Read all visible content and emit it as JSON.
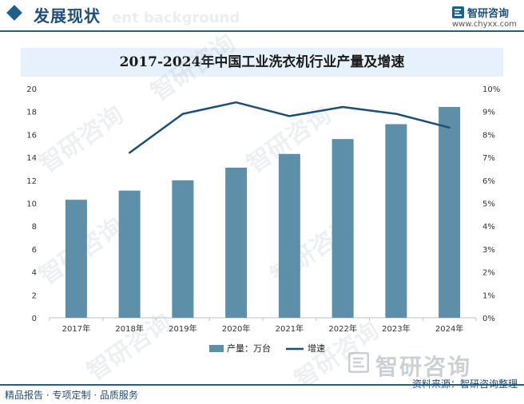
{
  "header": {
    "section_title": "发展现状",
    "ghost_text": "ent background",
    "brand_name": "智研咨询",
    "brand_url": "www.chyxx.com"
  },
  "footer": {
    "left_text": "精品报告 · 专项定制 · 品质服务",
    "source": "资料来源：智研咨询整理"
  },
  "watermark": {
    "text": "智研咨询",
    "big_text": "智研咨询"
  },
  "colors": {
    "bar": "#5d8fa8",
    "line": "#1d4f72",
    "accent": "#1f5f8b"
  },
  "chart_data": {
    "type": "bar",
    "title": "2017-2024年中国工业洗衣机行业产量及增速",
    "categories": [
      "2017年",
      "2018年",
      "2019年",
      "2020年",
      "2021年",
      "2022年",
      "2023年",
      "2024年"
    ],
    "series": [
      {
        "name": "产量：万台",
        "type": "bar",
        "axis": "left",
        "values": [
          10.3,
          11.1,
          12.0,
          13.1,
          14.3,
          15.6,
          16.9,
          18.4
        ]
      },
      {
        "name": "增速",
        "type": "line",
        "axis": "right",
        "values": [
          null,
          7.2,
          8.9,
          9.4,
          8.8,
          9.2,
          8.9,
          8.3
        ]
      }
    ],
    "y_left": {
      "ylim": [
        0,
        20
      ],
      "ticks": [
        0,
        2,
        4,
        6,
        8,
        10,
        12,
        14,
        16,
        18,
        20
      ]
    },
    "y_right": {
      "ylim": [
        0,
        10
      ],
      "ticks": [
        "0%",
        "1%",
        "2%",
        "3%",
        "4%",
        "5%",
        "6%",
        "7%",
        "8%",
        "9%",
        "10%"
      ]
    },
    "grid": false,
    "legend": "bottom"
  }
}
